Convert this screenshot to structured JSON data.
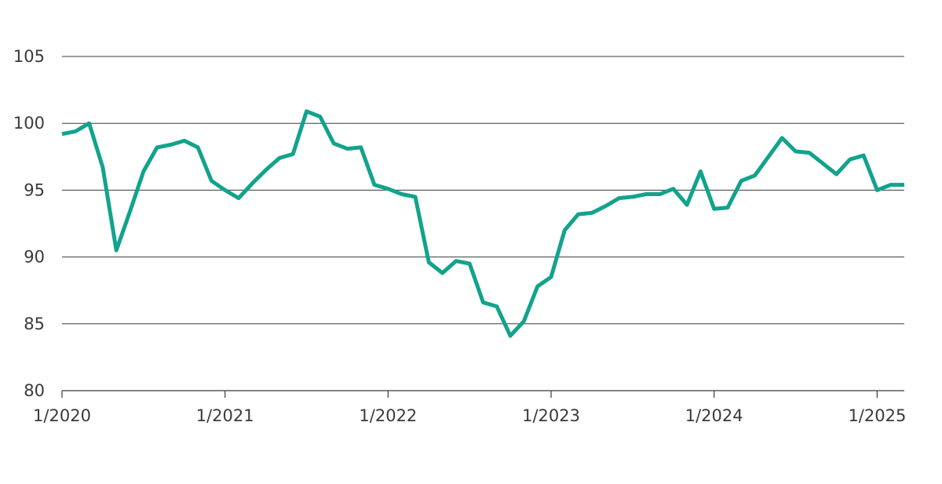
{
  "chart_data": {
    "type": "line",
    "title": "",
    "xlabel": "",
    "ylabel": "",
    "ylim": [
      80,
      105
    ],
    "xlim": [
      "2020-01",
      "2025-03"
    ],
    "grid": "horizontal",
    "yticks": [
      "80",
      "85",
      "90",
      "95",
      "100",
      "105"
    ],
    "xticks": [
      "1/2020",
      "1/2021",
      "1/2022",
      "1/2023",
      "1/2024",
      "1/2025"
    ],
    "colors": {
      "line": "#12a38c",
      "grid": "#3a3a3a",
      "axis": "#3a3a3a"
    },
    "series": [
      {
        "x": [
          "2020-01",
          "2020-02",
          "2020-03",
          "2020-04",
          "2020-05",
          "2020-06",
          "2020-07",
          "2020-08",
          "2020-09",
          "2020-10",
          "2020-11",
          "2020-12",
          "2021-01",
          "2021-02",
          "2021-03",
          "2021-04",
          "2021-05",
          "2021-06",
          "2021-07",
          "2021-08",
          "2021-09",
          "2021-10",
          "2021-11",
          "2021-12",
          "2022-01",
          "2022-02",
          "2022-03",
          "2022-04",
          "2022-05",
          "2022-06",
          "2022-07",
          "2022-08",
          "2022-09",
          "2022-10",
          "2022-11",
          "2022-12",
          "2023-01",
          "2023-02",
          "2023-03",
          "2023-04",
          "2023-05",
          "2023-06",
          "2023-07",
          "2023-08",
          "2023-09",
          "2023-10",
          "2023-11",
          "2023-12",
          "2024-01",
          "2024-02",
          "2024-03",
          "2024-04",
          "2024-05",
          "2024-06",
          "2024-07",
          "2024-08",
          "2024-09",
          "2024-10",
          "2024-11",
          "2024-12",
          "2025-01",
          "2025-02",
          "2025-03"
        ],
        "values": [
          99.2,
          99.4,
          100.0,
          96.7,
          90.5,
          93.4,
          96.4,
          98.2,
          98.4,
          98.7,
          98.2,
          95.7,
          95.0,
          94.4,
          95.5,
          96.5,
          97.4,
          97.7,
          100.9,
          100.5,
          98.5,
          98.1,
          98.2,
          95.4,
          95.1,
          94.7,
          94.5,
          89.6,
          88.8,
          89.7,
          89.5,
          86.6,
          86.3,
          84.1,
          85.2,
          87.8,
          88.5,
          92.0,
          93.2,
          93.3,
          93.8,
          94.4,
          94.5,
          94.7,
          94.7,
          95.1,
          93.9,
          96.4,
          93.6,
          93.7,
          95.7,
          96.1,
          97.5,
          98.9,
          97.9,
          97.8,
          97.0,
          96.2,
          97.3,
          97.6,
          95.0,
          95.4,
          95.4
        ]
      }
    ]
  }
}
